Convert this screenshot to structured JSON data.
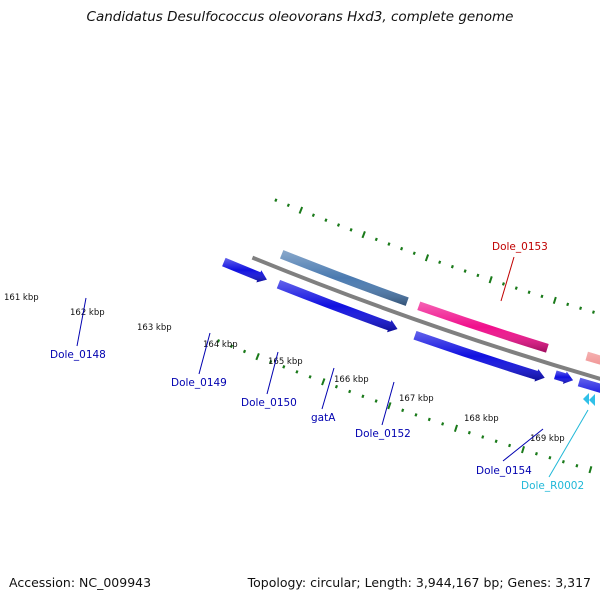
{
  "title": "Candidatus Desulfococcus oleovorans Hxd3, complete genome",
  "footer": {
    "accession": "Accession: NC_009943",
    "topology": "Topology: circular; Length: 3,944,167 bp; Genes: 3,317"
  },
  "colors": {
    "backbone": "#808080",
    "tick": "#1a7a1a",
    "cds_forward": "#1010e0",
    "cds_reverse_blue": "#4a7ab0",
    "cds_pink": "#f0108c",
    "cds_salmon": "#ef8888",
    "cds_red": "#ff1010",
    "rna_cyan": "#30c0e8",
    "label_cds": "#0000b0",
    "label_red": "#c00000",
    "label_rna": "#20b8d8"
  },
  "scale_labels": [
    "161 kbp",
    "162 kbp",
    "163 kbp",
    "164 kbp",
    "165 kbp",
    "166 kbp",
    "167 kbp",
    "168 kbp",
    "169 kbp"
  ],
  "genes": [
    {
      "label": "Dole_0148",
      "color_key": "cds_reverse_blue",
      "label_color_key": "label_cds"
    },
    {
      "label": "Dole_0149",
      "color_key": "cds_pink",
      "label_color_key": "label_cds"
    },
    {
      "label": "Dole_0150",
      "color_key": "cds_forward",
      "label_color_key": "label_cds"
    },
    {
      "label": "gatA",
      "color_key": "cds_salmon",
      "label_color_key": "label_cds"
    },
    {
      "label": "Dole_0152",
      "color_key": "cds_salmon",
      "label_color_key": "label_cds"
    },
    {
      "label": "Dole_0153",
      "color_key": "cds_red",
      "label_color_key": "label_red"
    },
    {
      "label": "Dole_0154",
      "color_key": "cds_forward",
      "label_color_key": "label_cds"
    },
    {
      "label": "Dole_R0002",
      "color_key": "rna_cyan",
      "label_color_key": "label_rna"
    }
  ]
}
